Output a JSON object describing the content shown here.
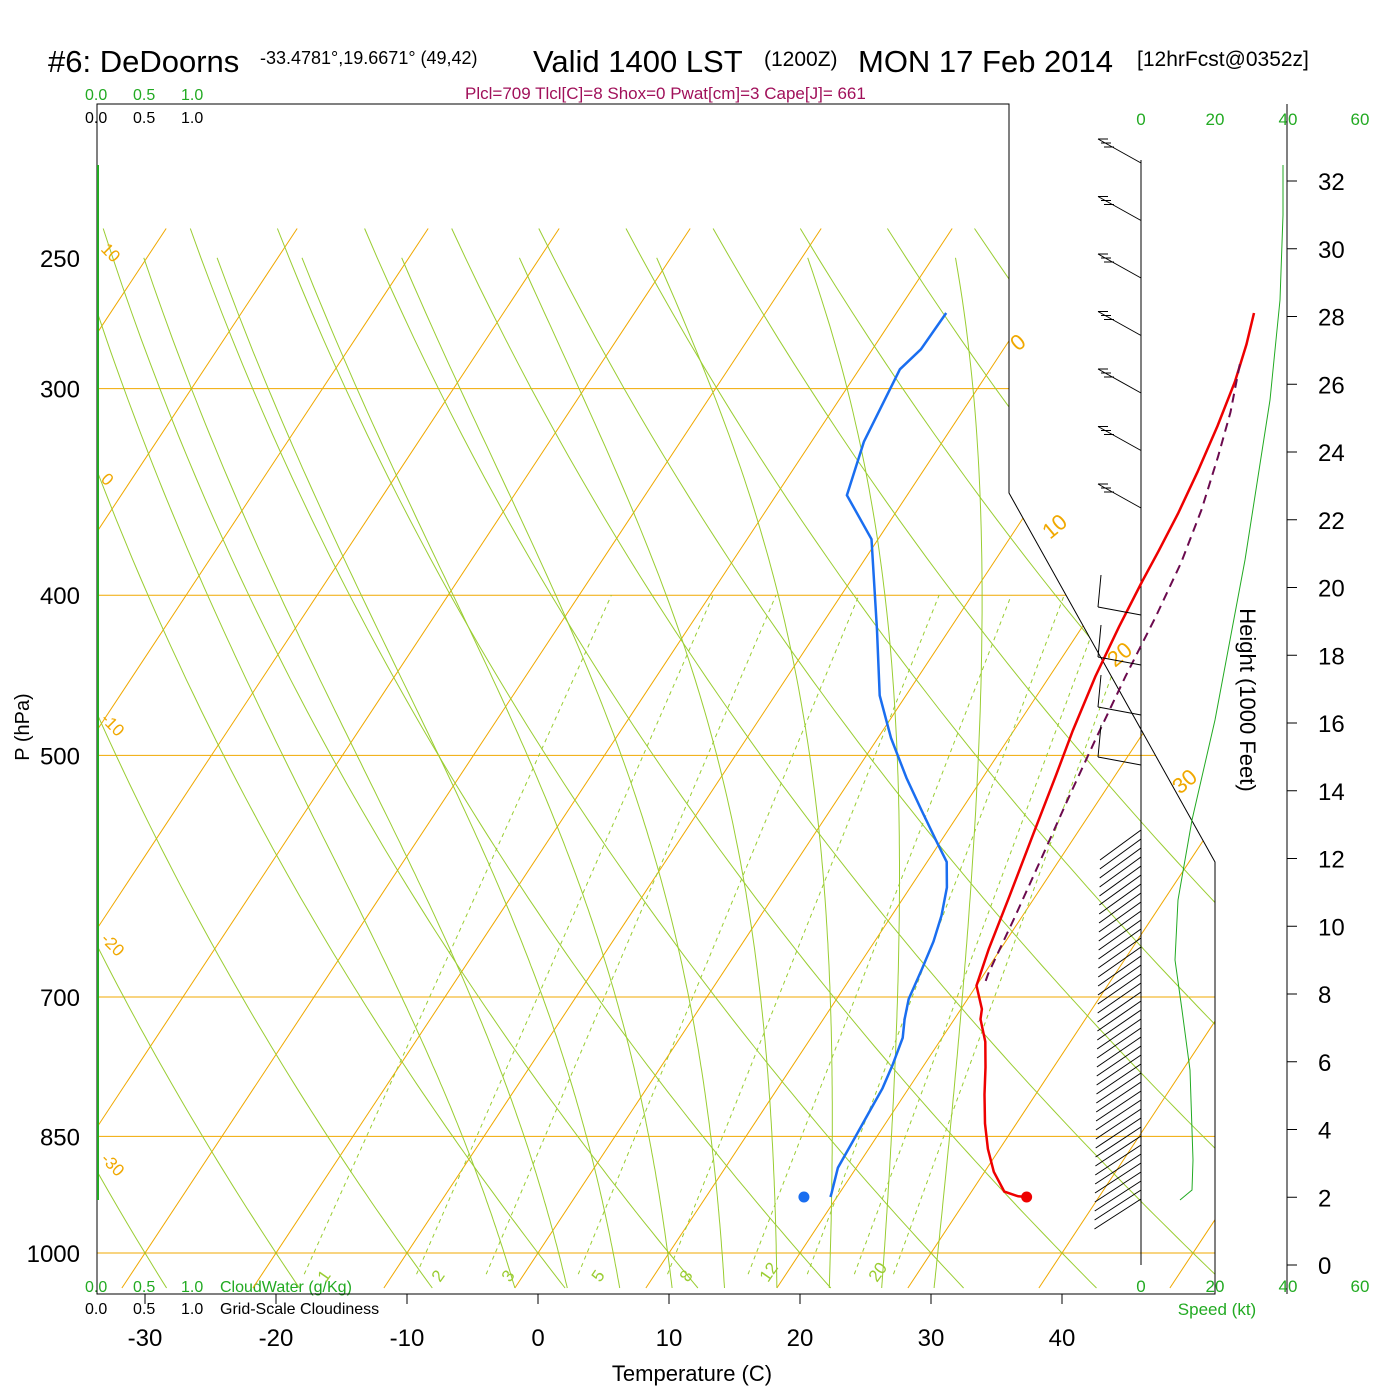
{
  "header": {
    "station": "#6: DeDoorns",
    "coords": "-33.4781°,19.6671° (49,42)",
    "valid": "Valid 1400 LST",
    "zulu": "(1200Z)",
    "date": "MON 17 Feb 2014",
    "forecast": "[12hrFcst@0352z]",
    "params": "Plcl=709 Tlcl[C]=8 Shox=0 Pwat[cm]=3 Cape[J]= 661"
  },
  "colors": {
    "temperature": "#ee0000",
    "dewpoint": "#1a6ef0",
    "parcel": "#6b0a4e",
    "isotherm": "#f0a800",
    "dry_adiabat": "#9acd32",
    "mixing_ratio": "#9acd32",
    "cloud": "#22aa22",
    "params_text": "#a0105a"
  },
  "cloud_scale": {
    "top_green": [
      "0.0",
      "0.5",
      "1.0"
    ],
    "top_black": [
      "0.0",
      "0.5",
      "1.0"
    ],
    "bottom_green": [
      "0.0",
      "0.5",
      "1.0"
    ],
    "bottom_black": [
      "0.0",
      "0.5",
      "1.0"
    ],
    "cloudwater_label": "CloudWater (g/Kg)",
    "cloudiness_label": "Grid-Scale Cloudiness"
  },
  "wind_scale": {
    "top_ticks": [
      "0",
      "20",
      "40",
      "60"
    ],
    "bottom_ticks": [
      "0",
      "20",
      "40",
      "60"
    ],
    "speed_label": "Speed (kt)"
  },
  "height_axis": {
    "label": "Height (1000 Feet)",
    "ticks": [
      "32",
      "30",
      "28",
      "26",
      "24",
      "22",
      "20",
      "18",
      "16",
      "14",
      "12",
      "10",
      "8",
      "6",
      "4",
      "2",
      "0"
    ]
  },
  "chart_data": {
    "type": "line",
    "subtype": "skew-t log-p sounding",
    "xlabel": "Temperature (C)",
    "ylabel": "P (hPa)",
    "y_scale": "log",
    "xlim": [
      -34,
      43
    ],
    "ylim": [
      1030,
      250
    ],
    "x_ticks": [
      "-30",
      "-20",
      "-10",
      "0",
      "10",
      "20",
      "30",
      "40"
    ],
    "y_ticks": [
      "250",
      "300",
      "400",
      "500",
      "700",
      "850",
      "1000"
    ],
    "isotherm_labels": [
      "10",
      "0",
      "-10",
      "-20",
      "-30",
      "0",
      "10",
      "20",
      "30"
    ],
    "mixing_ratio_labels": [
      "1",
      "2",
      "3",
      "5",
      "8",
      "12",
      "20"
    ],
    "series": [
      {
        "key": "temperature",
        "points": [
          [
            7.3,
            270
          ],
          [
            8.3,
            282
          ],
          [
            9.3,
            297
          ],
          [
            10.2,
            316
          ],
          [
            11.0,
            337
          ],
          [
            11.6,
            357
          ],
          [
            12.0,
            376
          ],
          [
            12.3,
            393
          ],
          [
            12.8,
            418
          ],
          [
            13.5,
            448
          ],
          [
            14.5,
            483
          ],
          [
            15.5,
            515
          ],
          [
            16.7,
            558
          ],
          [
            18.0,
            608
          ],
          [
            19.1,
            655
          ],
          [
            20.0,
            689
          ],
          [
            21.6,
            712
          ],
          [
            22.0,
            722
          ],
          [
            23.5,
            745
          ],
          [
            24.8,
            772
          ],
          [
            26.1,
            802
          ],
          [
            27.6,
            835
          ],
          [
            29.1,
            865
          ],
          [
            30.7,
            893
          ],
          [
            32.5,
            918
          ],
          [
            33.8,
            924
          ],
          [
            34.5,
            925
          ]
        ]
      },
      {
        "key": "dewpoint",
        "points": [
          [
            -16.2,
            270
          ],
          [
            -16.3,
            284
          ],
          [
            -16.9,
            292
          ],
          [
            -16.0,
            323
          ],
          [
            -15.2,
            337
          ],
          [
            -14.6,
            348
          ],
          [
            -10.5,
            370
          ],
          [
            -5.5,
            420
          ],
          [
            -2.0,
            460
          ],
          [
            1.0,
            488
          ],
          [
            4.2,
            516
          ],
          [
            7.0,
            540
          ],
          [
            9.5,
            562
          ],
          [
            11.5,
            580
          ],
          [
            12.8,
            601
          ],
          [
            13.8,
            625
          ],
          [
            14.5,
            648
          ],
          [
            15.0,
            673
          ],
          [
            15.5,
            702
          ],
          [
            16.2,
            722
          ],
          [
            17.0,
            741
          ],
          [
            17.6,
            770
          ],
          [
            18.0,
            795
          ],
          [
            18.2,
            824
          ],
          [
            18.4,
            855
          ],
          [
            18.6,
            888
          ],
          [
            19.4,
            920
          ],
          [
            19.5,
            925
          ]
        ]
      },
      {
        "key": "parcel",
        "points": [
          [
            8.8,
            290
          ],
          [
            10.5,
            310
          ],
          [
            11.8,
            330
          ],
          [
            13.2,
            355
          ],
          [
            14.3,
            382
          ],
          [
            15.1,
            412
          ],
          [
            15.8,
            448
          ],
          [
            16.7,
            490
          ],
          [
            17.6,
            532
          ],
          [
            18.6,
            580
          ],
          [
            19.5,
            628
          ],
          [
            20.3,
            678
          ],
          [
            20.6,
            690
          ]
        ]
      }
    ],
    "surface_points": [
      {
        "key": "temperature",
        "value": 37.3,
        "pressure": 925
      },
      {
        "key": "dewpoint",
        "value": 20.3,
        "pressure": 925
      }
    ],
    "wind_profile": "barbs from surface to 270 hPa, height 1000-32 kft"
  }
}
